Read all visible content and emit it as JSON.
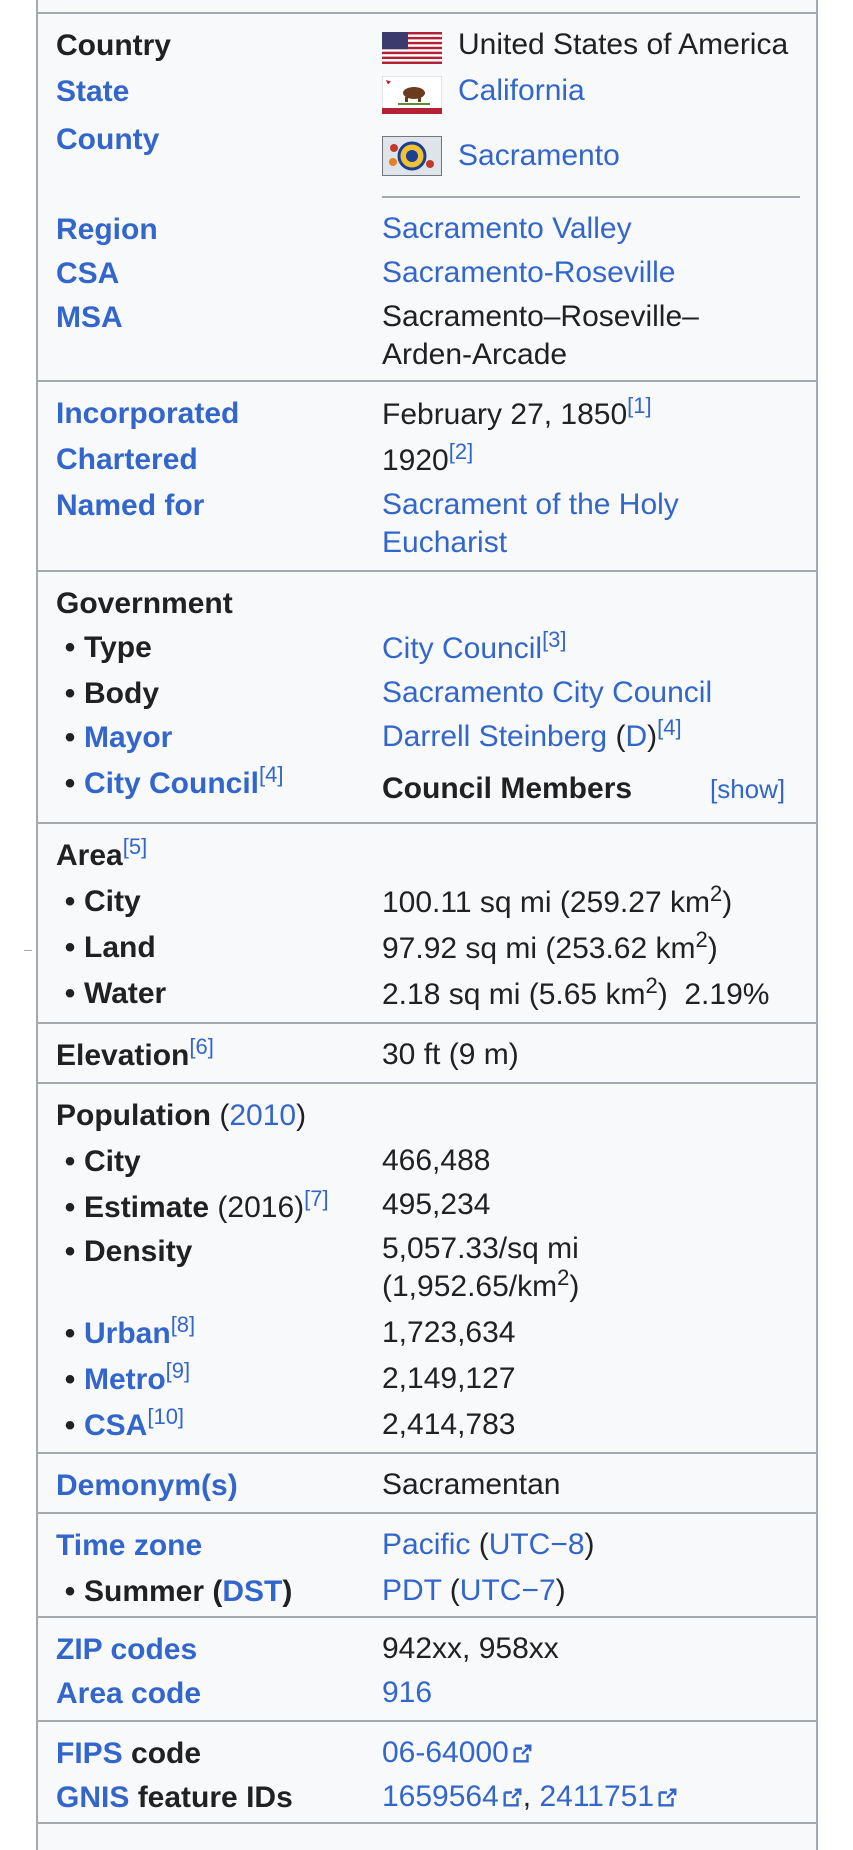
{
  "location": {
    "country_label": "Country",
    "country_value": "United States of America",
    "state_label": "State",
    "state_value": "California",
    "county_label": "County",
    "county_value": "Sacramento",
    "region_label": "Region",
    "region_value": "Sacramento Valley",
    "csa_label": "CSA",
    "csa_value": "Sacramento-Roseville",
    "msa_label": "MSA",
    "msa_line1": "Sacramento–Roseville–",
    "msa_line2": "Arden-Arcade"
  },
  "history": {
    "incorporated_label": "Incorporated",
    "incorporated_value": "February 27, 1850",
    "incorporated_ref": "[1]",
    "chartered_label": "Chartered",
    "chartered_value": "1920",
    "chartered_ref": "[2]",
    "named_label": "Named for",
    "named_line1": "Sacrament of the Holy",
    "named_line2": "Eucharist"
  },
  "government": {
    "heading": "Government",
    "bullet": "•",
    "type_label": "Type",
    "type_value": "City Council",
    "type_ref": "[3]",
    "body_label": "Body",
    "body_value": "Sacramento City Council",
    "mayor_label": "Mayor",
    "mayor_value": "Darrell Steinberg",
    "mayor_party": "D",
    "mayor_ref": "[4]",
    "council_label": "City Council",
    "council_ref": "[4]",
    "council_members": "Council Members",
    "show_link": "[show]"
  },
  "area": {
    "heading": "Area",
    "ref": "[5]",
    "city_label": "City",
    "city_value": "100.11 sq mi (259.27 km",
    "land_label": "Land",
    "land_value": "97.92 sq mi (253.62 km",
    "water_label": "Water",
    "water_value": "2.18 sq mi (5.65 km",
    "water_pct": "2.19%",
    "sup2": "2",
    "close": ")"
  },
  "elevation": {
    "label": "Elevation",
    "ref": "[6]",
    "value": "30 ft (9 m)"
  },
  "population": {
    "heading": "Population",
    "year": "2010",
    "city_label": "City",
    "city_value": "466,488",
    "estimate_label": "Estimate",
    "estimate_year": "(2016)",
    "estimate_ref": "[7]",
    "estimate_value": "495,234",
    "density_label": "Density",
    "density_line1": "5,057.33/sq mi",
    "density_line2": "(1,952.65/km",
    "urban_label": "Urban",
    "urban_ref": "[8]",
    "urban_value": "1,723,634",
    "metro_label": "Metro",
    "metro_ref": "[9]",
    "metro_value": "2,149,127",
    "csa_label": "CSA",
    "csa_ref": "[10]",
    "csa_value": "2,414,783"
  },
  "demonym": {
    "label": "Demonym(s)",
    "value": "Sacramentan"
  },
  "timezone": {
    "label": "Time zone",
    "zone": "Pacific",
    "offset": "UTC−8",
    "summer_label": "Summer",
    "dst": "DST",
    "summer_zone": "PDT",
    "summer_offset": "UTC−7"
  },
  "codes": {
    "zip_label": "ZIP codes",
    "zip_value": "942xx, 958xx",
    "area_label": "Area code",
    "area_value": "916",
    "fips_label_link": "FIPS",
    "fips_label_rest": " code",
    "fips_value": "06-64000",
    "gnis_label_link": "GNIS",
    "gnis_label_rest": " feature IDs",
    "gnis_value1": "1659564",
    "gnis_value2": "2411751",
    "comma": ", "
  },
  "colors": {
    "link": "#3366cc",
    "border": "#a2a9b1",
    "background": "#f8f9fa",
    "text": "#202122"
  },
  "icons": [
    "us-flag-icon",
    "california-flag-icon",
    "sacramento-seal-icon",
    "external-link-icon"
  ]
}
